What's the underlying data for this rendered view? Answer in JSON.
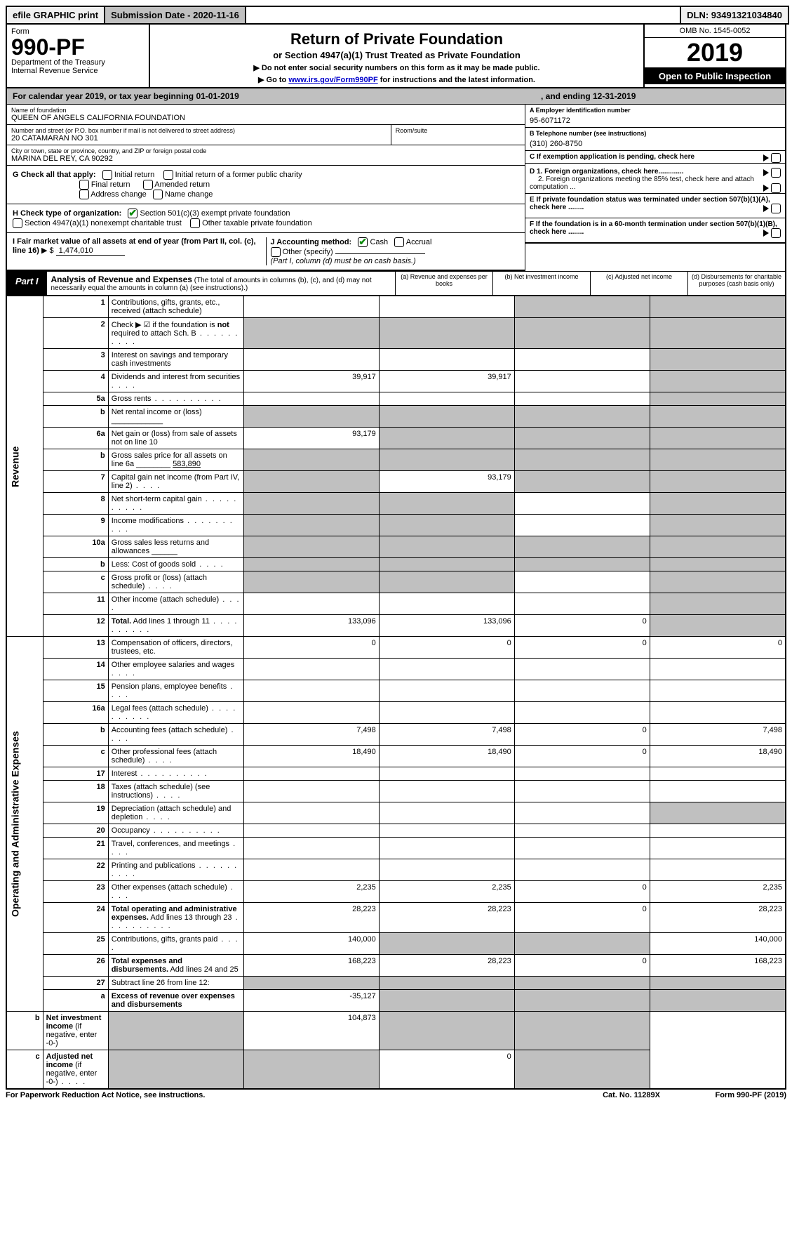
{
  "top": {
    "efile": "efile GRAPHIC print",
    "sub_label": "Submission Date - 2020-11-16",
    "dln": "DLN: 93491321034840"
  },
  "header": {
    "form_word": "Form",
    "form_no": "990-PF",
    "dept": "Department of the Treasury",
    "irs": "Internal Revenue Service",
    "title": "Return of Private Foundation",
    "subtitle": "or Section 4947(a)(1) Trust Treated as Private Foundation",
    "instr1": "▶ Do not enter social security numbers on this form as it may be made public.",
    "instr2_pre": "▶ Go to ",
    "instr2_link": "www.irs.gov/Form990PF",
    "instr2_post": " for instructions and the latest information.",
    "omb": "OMB No. 1545-0052",
    "year": "2019",
    "open": "Open to Public Inspection"
  },
  "cal": {
    "left": "For calendar year 2019, or tax year beginning 01-01-2019",
    "right": ", and ending 12-31-2019"
  },
  "info": {
    "name_lab": "Name of foundation",
    "name": "QUEEN OF ANGELS CALIFORNIA FOUNDATION",
    "addr_lab": "Number and street (or P.O. box number if mail is not delivered to street address)",
    "addr": "20 CATAMARAN NO 301",
    "room_lab": "Room/suite",
    "city_lab": "City or town, state or province, country, and ZIP or foreign postal code",
    "city": "MARINA DEL REY, CA  90292",
    "a_lab": "A Employer identification number",
    "a_val": "95-6071172",
    "b_lab": "B Telephone number (see instructions)",
    "b_val": "(310) 260-8750",
    "c_lab": "C If exemption application is pending, check here",
    "d1_lab": "D 1. Foreign organizations, check here.............",
    "d2_lab": "2. Foreign organizations meeting the 85% test, check here and attach computation ...",
    "e_lab": "E  If private foundation status was terminated under section 507(b)(1)(A), check here ........",
    "f_lab": "F  If the foundation is in a 60-month termination under section 507(b)(1)(B), check here ........"
  },
  "g": {
    "label": "G Check all that apply:",
    "opts": [
      "Initial return",
      "Initial return of a former public charity",
      "Final return",
      "Amended return",
      "Address change",
      "Name change"
    ]
  },
  "h": {
    "label": "H Check type of organization:",
    "o1": "Section 501(c)(3) exempt private foundation",
    "o2": "Section 4947(a)(1) nonexempt charitable trust",
    "o3": "Other taxable private foundation"
  },
  "i": {
    "label": "I Fair market value of all assets at end of year (from Part II, col. (c), line 16)",
    "val": "1,474,010"
  },
  "j": {
    "label": "J Accounting method:",
    "cash": "Cash",
    "accrual": "Accrual",
    "other": "Other (specify)",
    "note": "(Part I, column (d) must be on cash basis.)"
  },
  "part1": {
    "tag": "Part I",
    "title": "Analysis of Revenue and Expenses",
    "note": "(The total of amounts in columns (b), (c), and (d) may not necessarily equal the amounts in column (a) (see instructions).)",
    "col_a": "(a)   Revenue and expenses per books",
    "col_b": "(b)  Net investment income",
    "col_c": "(c)  Adjusted net income",
    "col_d": "(d)  Disbursements for charitable purposes (cash basis only)"
  },
  "sides": {
    "rev": "Revenue",
    "ops": "Operating and Administrative Expenses"
  },
  "rows": [
    {
      "n": "1",
      "d": "Contributions, gifts, grants, etc., received (attach schedule)",
      "a": "",
      "b": "",
      "c": "S",
      "dd": "S"
    },
    {
      "n": "2",
      "d": "Check ▶ ☑ if the foundation is <b>not</b> required to attach Sch. B",
      "dots": 1,
      "a": "S",
      "b": "S",
      "c": "S",
      "dd": "S"
    },
    {
      "n": "3",
      "d": "Interest on savings and temporary cash investments",
      "a": "",
      "b": "",
      "c": "",
      "dd": "S"
    },
    {
      "n": "4",
      "d": "Dividends and interest from securities",
      "dots": "s",
      "a": "39,917",
      "b": "39,917",
      "c": "",
      "dd": "S"
    },
    {
      "n": "5a",
      "d": "Gross rents",
      "dots": 1,
      "a": "",
      "b": "",
      "c": "",
      "dd": "S"
    },
    {
      "n": "b",
      "d": "Net rental income or (loss)   ____________",
      "a": "S",
      "b": "S",
      "c": "S",
      "dd": "S"
    },
    {
      "n": "6a",
      "d": "Net gain or (loss) from sale of assets not on line 10",
      "a": "93,179",
      "b": "S",
      "c": "S",
      "dd": "S"
    },
    {
      "n": "b",
      "d": "Gross sales price for all assets on line 6a ________ <u>583,890</u>",
      "a": "S",
      "b": "S",
      "c": "S",
      "dd": "S"
    },
    {
      "n": "7",
      "d": "Capital gain net income (from Part IV, line 2)",
      "dots": "s",
      "a": "S",
      "b": "93,179",
      "c": "S",
      "dd": "S"
    },
    {
      "n": "8",
      "d": "Net short-term capital gain",
      "dots": 1,
      "a": "S",
      "b": "S",
      "c": "",
      "dd": "S"
    },
    {
      "n": "9",
      "d": "Income modifications",
      "dots": 1,
      "a": "S",
      "b": "S",
      "c": "",
      "dd": "S"
    },
    {
      "n": "10a",
      "d": "Gross sales less returns and allowances  ______",
      "a": "S",
      "b": "S",
      "c": "S",
      "dd": "S"
    },
    {
      "n": "b",
      "d": "Less: Cost of goods sold",
      "dots": "s",
      "suffix": "______",
      "a": "S",
      "b": "S",
      "c": "S",
      "dd": "S"
    },
    {
      "n": "c",
      "d": "Gross profit or (loss) (attach schedule)",
      "dots": "s",
      "a": "S",
      "b": "S",
      "c": "",
      "dd": "S"
    },
    {
      "n": "11",
      "d": "Other income (attach schedule)",
      "dots": "s",
      "a": "",
      "b": "",
      "c": "",
      "dd": "S"
    },
    {
      "n": "12",
      "d": "<b>Total.</b> Add lines 1 through 11",
      "dots": 1,
      "a": "133,096",
      "b": "133,096",
      "c": "0",
      "dd": "S"
    },
    {
      "n": "13",
      "d": "Compensation of officers, directors, trustees, etc.",
      "a": "0",
      "b": "0",
      "c": "0",
      "dd": "0"
    },
    {
      "n": "14",
      "d": "Other employee salaries and wages",
      "dots": "s",
      "a": "",
      "b": "",
      "c": "",
      "dd": ""
    },
    {
      "n": "15",
      "d": "Pension plans, employee benefits",
      "dots": "s",
      "a": "",
      "b": "",
      "c": "",
      "dd": ""
    },
    {
      "n": "16a",
      "d": "Legal fees (attach schedule)",
      "dots": 1,
      "a": "",
      "b": "",
      "c": "",
      "dd": ""
    },
    {
      "n": "b",
      "d": "Accounting fees (attach schedule)",
      "dots": "s",
      "a": "7,498",
      "b": "7,498",
      "c": "0",
      "dd": "7,498"
    },
    {
      "n": "c",
      "d": "Other professional fees (attach schedule)",
      "dots": "s",
      "a": "18,490",
      "b": "18,490",
      "c": "0",
      "dd": "18,490"
    },
    {
      "n": "17",
      "d": "Interest",
      "dots": 1,
      "a": "",
      "b": "",
      "c": "",
      "dd": ""
    },
    {
      "n": "18",
      "d": "Taxes (attach schedule) (see instructions)",
      "dots": "s",
      "a": "",
      "b": "",
      "c": "",
      "dd": ""
    },
    {
      "n": "19",
      "d": "Depreciation (attach schedule) and depletion",
      "dots": "s",
      "a": "",
      "b": "",
      "c": "",
      "dd": "S"
    },
    {
      "n": "20",
      "d": "Occupancy",
      "dots": 1,
      "a": "",
      "b": "",
      "c": "",
      "dd": ""
    },
    {
      "n": "21",
      "d": "Travel, conferences, and meetings",
      "dots": "s",
      "a": "",
      "b": "",
      "c": "",
      "dd": ""
    },
    {
      "n": "22",
      "d": "Printing and publications",
      "dots": 1,
      "a": "",
      "b": "",
      "c": "",
      "dd": ""
    },
    {
      "n": "23",
      "d": "Other expenses (attach schedule)",
      "dots": "s",
      "a": "2,235",
      "b": "2,235",
      "c": "0",
      "dd": "2,235"
    },
    {
      "n": "24",
      "d": "<b>Total operating and administrative expenses.</b> Add lines 13 through 23",
      "dots": 1,
      "a": "28,223",
      "b": "28,223",
      "c": "0",
      "dd": "28,223"
    },
    {
      "n": "25",
      "d": "Contributions, gifts, grants paid",
      "dots": "s",
      "a": "140,000",
      "b": "S",
      "c": "S",
      "dd": "140,000"
    },
    {
      "n": "26",
      "d": "<b>Total expenses and disbursements.</b> Add lines 24 and 25",
      "a": "168,223",
      "b": "28,223",
      "c": "0",
      "dd": "168,223"
    },
    {
      "n": "27",
      "d": "Subtract line 26 from line 12:",
      "a": "S",
      "b": "S",
      "c": "S",
      "dd": "S"
    },
    {
      "n": "a",
      "d": "<b>Excess of revenue over expenses and disbursements</b>",
      "a": "-35,127",
      "b": "S",
      "c": "S",
      "dd": "S"
    },
    {
      "n": "b",
      "d": "<b>Net investment income</b> (if negative, enter -0-)",
      "a": "S",
      "b": "104,873",
      "c": "S",
      "dd": "S"
    },
    {
      "n": "c",
      "d": "<b>Adjusted net income</b> (if negative, enter -0-)",
      "dots": "s",
      "a": "S",
      "b": "S",
      "c": "0",
      "dd": "S"
    }
  ],
  "foot": {
    "l": "For Paperwork Reduction Act Notice, see instructions.",
    "m": "Cat. No. 11289X",
    "r": "Form 990-PF (2019)"
  },
  "colors": {
    "shade": "#c0c0c0",
    "check": "#0a8a0a",
    "link": "#0000cc"
  }
}
